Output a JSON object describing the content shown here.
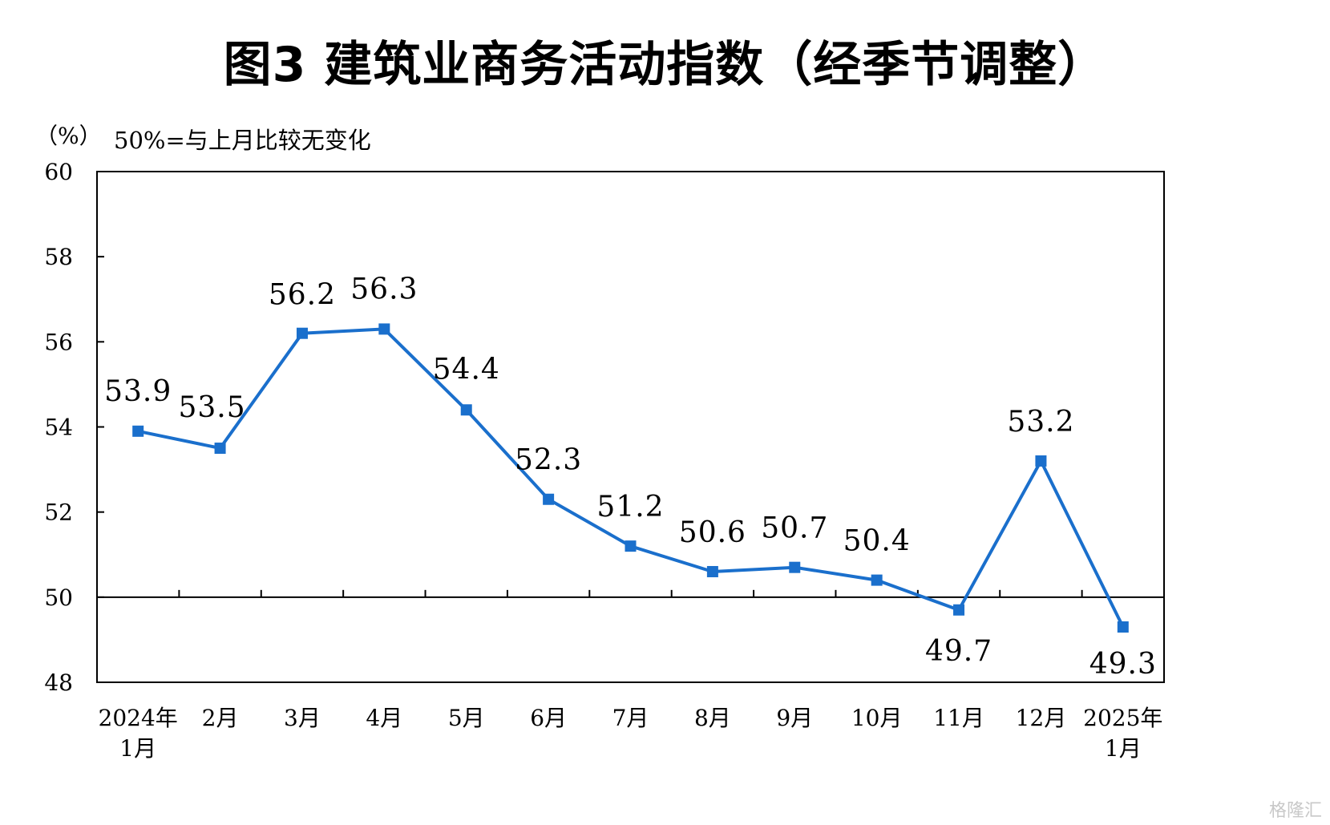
{
  "chart_data": {
    "type": "line",
    "title": "图3  建筑业商务活动指数（经季节调整）",
    "unit_label": "（%）",
    "note": "50%=与上月比较无变化",
    "categories": [
      [
        "2024年",
        "1月"
      ],
      [
        "2月"
      ],
      [
        "3月"
      ],
      [
        "4月"
      ],
      [
        "5月"
      ],
      [
        "6月"
      ],
      [
        "7月"
      ],
      [
        "8月"
      ],
      [
        "9月"
      ],
      [
        "10月"
      ],
      [
        "11月"
      ],
      [
        "12月"
      ],
      [
        "2025年",
        "1月"
      ]
    ],
    "series": [
      {
        "values": [
          53.9,
          53.5,
          56.2,
          56.3,
          54.4,
          52.3,
          51.2,
          50.6,
          50.7,
          50.4,
          49.7,
          53.2,
          49.3
        ]
      }
    ],
    "data_labels": [
      "53.9",
      "53.5",
      "56.2",
      "56.3",
      "54.4",
      "52.3",
      "51.2",
      "50.6",
      "50.7",
      "50.4",
      "49.7",
      "53.2",
      "49.3"
    ],
    "ylim": [
      48,
      60
    ],
    "yticks": [
      48,
      50,
      52,
      54,
      56,
      58,
      60
    ],
    "reference_line": 50,
    "series_color": "#1a6fcc",
    "grid": false
  },
  "watermark": "格隆汇"
}
